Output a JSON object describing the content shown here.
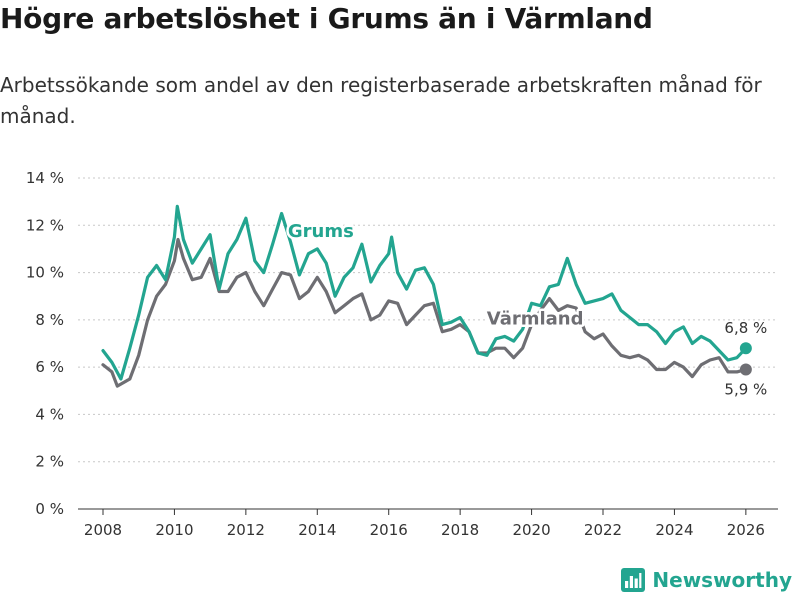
{
  "header": {
    "title": "Högre arbetslöshet i Grums än i Värmland",
    "subtitle": "Arbetssökande som andel av den registerbaserade arbetskraften månad för månad."
  },
  "brand": {
    "name": "Newsworthy",
    "icon": "bar-chart-icon",
    "color": "#23a590"
  },
  "chart_data": {
    "type": "line",
    "title": "Högre arbetslöshet i Grums än i Värmland",
    "subtitle": "Arbetssökande som andel av den registerbaserade arbetskraften månad för månad.",
    "xlabel": "",
    "ylabel": "",
    "xlim": [
      2007.3,
      2026.9
    ],
    "ylim": [
      0,
      14
    ],
    "x_ticks": [
      2008,
      2010,
      2012,
      2014,
      2016,
      2018,
      2020,
      2022,
      2024,
      2026
    ],
    "y_ticks": [
      0,
      2,
      4,
      6,
      8,
      10,
      12,
      14
    ],
    "y_tick_labels": [
      "0 %",
      "2 %",
      "4 %",
      "6 %",
      "8 %",
      "10 %",
      "12 %",
      "14 %"
    ],
    "grid": "horizontal",
    "series": [
      {
        "name": "Grums",
        "color": "#23a590",
        "label_at": [
          2014.1,
          11.5
        ],
        "end_label": "6,8 %",
        "points": [
          [
            2008.0,
            6.7
          ],
          [
            2008.25,
            6.2
          ],
          [
            2008.5,
            5.5
          ],
          [
            2008.75,
            6.8
          ],
          [
            2009.0,
            8.2
          ],
          [
            2009.25,
            9.8
          ],
          [
            2009.5,
            10.3
          ],
          [
            2009.75,
            9.7
          ],
          [
            2010.0,
            11.5
          ],
          [
            2010.08,
            12.8
          ],
          [
            2010.25,
            11.4
          ],
          [
            2010.5,
            10.4
          ],
          [
            2010.75,
            11.0
          ],
          [
            2011.0,
            11.6
          ],
          [
            2011.25,
            9.3
          ],
          [
            2011.5,
            10.8
          ],
          [
            2011.75,
            11.4
          ],
          [
            2012.0,
            12.3
          ],
          [
            2012.25,
            10.5
          ],
          [
            2012.5,
            10.0
          ],
          [
            2012.75,
            11.2
          ],
          [
            2013.0,
            12.5
          ],
          [
            2013.25,
            11.3
          ],
          [
            2013.5,
            9.9
          ],
          [
            2013.75,
            10.8
          ],
          [
            2014.0,
            11.0
          ],
          [
            2014.25,
            10.4
          ],
          [
            2014.5,
            9.0
          ],
          [
            2014.75,
            9.8
          ],
          [
            2015.0,
            10.2
          ],
          [
            2015.25,
            11.2
          ],
          [
            2015.5,
            9.6
          ],
          [
            2015.75,
            10.3
          ],
          [
            2016.0,
            10.8
          ],
          [
            2016.08,
            11.5
          ],
          [
            2016.25,
            10.0
          ],
          [
            2016.5,
            9.3
          ],
          [
            2016.75,
            10.1
          ],
          [
            2017.0,
            10.2
          ],
          [
            2017.25,
            9.5
          ],
          [
            2017.5,
            7.8
          ],
          [
            2017.75,
            7.9
          ],
          [
            2018.0,
            8.1
          ],
          [
            2018.25,
            7.5
          ],
          [
            2018.5,
            6.6
          ],
          [
            2018.75,
            6.5
          ],
          [
            2019.0,
            7.2
          ],
          [
            2019.25,
            7.3
          ],
          [
            2019.5,
            7.1
          ],
          [
            2019.75,
            7.6
          ],
          [
            2020.0,
            8.7
          ],
          [
            2020.25,
            8.6
          ],
          [
            2020.5,
            9.4
          ],
          [
            2020.75,
            9.5
          ],
          [
            2021.0,
            10.6
          ],
          [
            2021.25,
            9.5
          ],
          [
            2021.5,
            8.7
          ],
          [
            2021.75,
            8.8
          ],
          [
            2022.0,
            8.9
          ],
          [
            2022.25,
            9.1
          ],
          [
            2022.5,
            8.4
          ],
          [
            2022.75,
            8.1
          ],
          [
            2023.0,
            7.8
          ],
          [
            2023.25,
            7.8
          ],
          [
            2023.5,
            7.5
          ],
          [
            2023.75,
            7.0
          ],
          [
            2024.0,
            7.5
          ],
          [
            2024.25,
            7.7
          ],
          [
            2024.5,
            7.0
          ],
          [
            2024.75,
            7.3
          ],
          [
            2025.0,
            7.1
          ],
          [
            2025.25,
            6.7
          ],
          [
            2025.5,
            6.3
          ],
          [
            2025.75,
            6.4
          ],
          [
            2026.0,
            6.8
          ]
        ]
      },
      {
        "name": "Värmland",
        "color": "#6e6e73",
        "label_at": [
          2020.1,
          7.8
        ],
        "end_label": "5,9 %",
        "points": [
          [
            2008.0,
            6.1
          ],
          [
            2008.25,
            5.8
          ],
          [
            2008.4,
            5.2
          ],
          [
            2008.75,
            5.5
          ],
          [
            2009.0,
            6.5
          ],
          [
            2009.25,
            8.0
          ],
          [
            2009.5,
            9.0
          ],
          [
            2009.75,
            9.5
          ],
          [
            2010.0,
            10.5
          ],
          [
            2010.1,
            11.4
          ],
          [
            2010.25,
            10.6
          ],
          [
            2010.5,
            9.7
          ],
          [
            2010.75,
            9.8
          ],
          [
            2011.0,
            10.6
          ],
          [
            2011.25,
            9.2
          ],
          [
            2011.5,
            9.2
          ],
          [
            2011.75,
            9.8
          ],
          [
            2012.0,
            10.0
          ],
          [
            2012.25,
            9.2
          ],
          [
            2012.5,
            8.6
          ],
          [
            2012.75,
            9.3
          ],
          [
            2013.0,
            10.0
          ],
          [
            2013.25,
            9.9
          ],
          [
            2013.5,
            8.9
          ],
          [
            2013.75,
            9.2
          ],
          [
            2014.0,
            9.8
          ],
          [
            2014.25,
            9.2
          ],
          [
            2014.5,
            8.3
          ],
          [
            2014.75,
            8.6
          ],
          [
            2015.0,
            8.9
          ],
          [
            2015.25,
            9.1
          ],
          [
            2015.5,
            8.0
          ],
          [
            2015.75,
            8.2
          ],
          [
            2016.0,
            8.8
          ],
          [
            2016.25,
            8.7
          ],
          [
            2016.5,
            7.8
          ],
          [
            2016.75,
            8.2
          ],
          [
            2017.0,
            8.6
          ],
          [
            2017.25,
            8.7
          ],
          [
            2017.5,
            7.5
          ],
          [
            2017.75,
            7.6
          ],
          [
            2018.0,
            7.8
          ],
          [
            2018.25,
            7.5
          ],
          [
            2018.5,
            6.6
          ],
          [
            2018.75,
            6.6
          ],
          [
            2019.0,
            6.8
          ],
          [
            2019.25,
            6.8
          ],
          [
            2019.5,
            6.4
          ],
          [
            2019.75,
            6.8
          ],
          [
            2020.0,
            7.8
          ],
          [
            2020.25,
            8.4
          ],
          [
            2020.5,
            8.9
          ],
          [
            2020.75,
            8.4
          ],
          [
            2021.0,
            8.6
          ],
          [
            2021.25,
            8.5
          ],
          [
            2021.5,
            7.5
          ],
          [
            2021.75,
            7.2
          ],
          [
            2022.0,
            7.4
          ],
          [
            2022.25,
            6.9
          ],
          [
            2022.5,
            6.5
          ],
          [
            2022.75,
            6.4
          ],
          [
            2023.0,
            6.5
          ],
          [
            2023.25,
            6.3
          ],
          [
            2023.5,
            5.9
          ],
          [
            2023.75,
            5.9
          ],
          [
            2024.0,
            6.2
          ],
          [
            2024.25,
            6.0
          ],
          [
            2024.5,
            5.6
          ],
          [
            2024.75,
            6.1
          ],
          [
            2025.0,
            6.3
          ],
          [
            2025.25,
            6.4
          ],
          [
            2025.5,
            5.8
          ],
          [
            2025.75,
            5.8
          ],
          [
            2026.0,
            5.9
          ]
        ]
      }
    ]
  }
}
